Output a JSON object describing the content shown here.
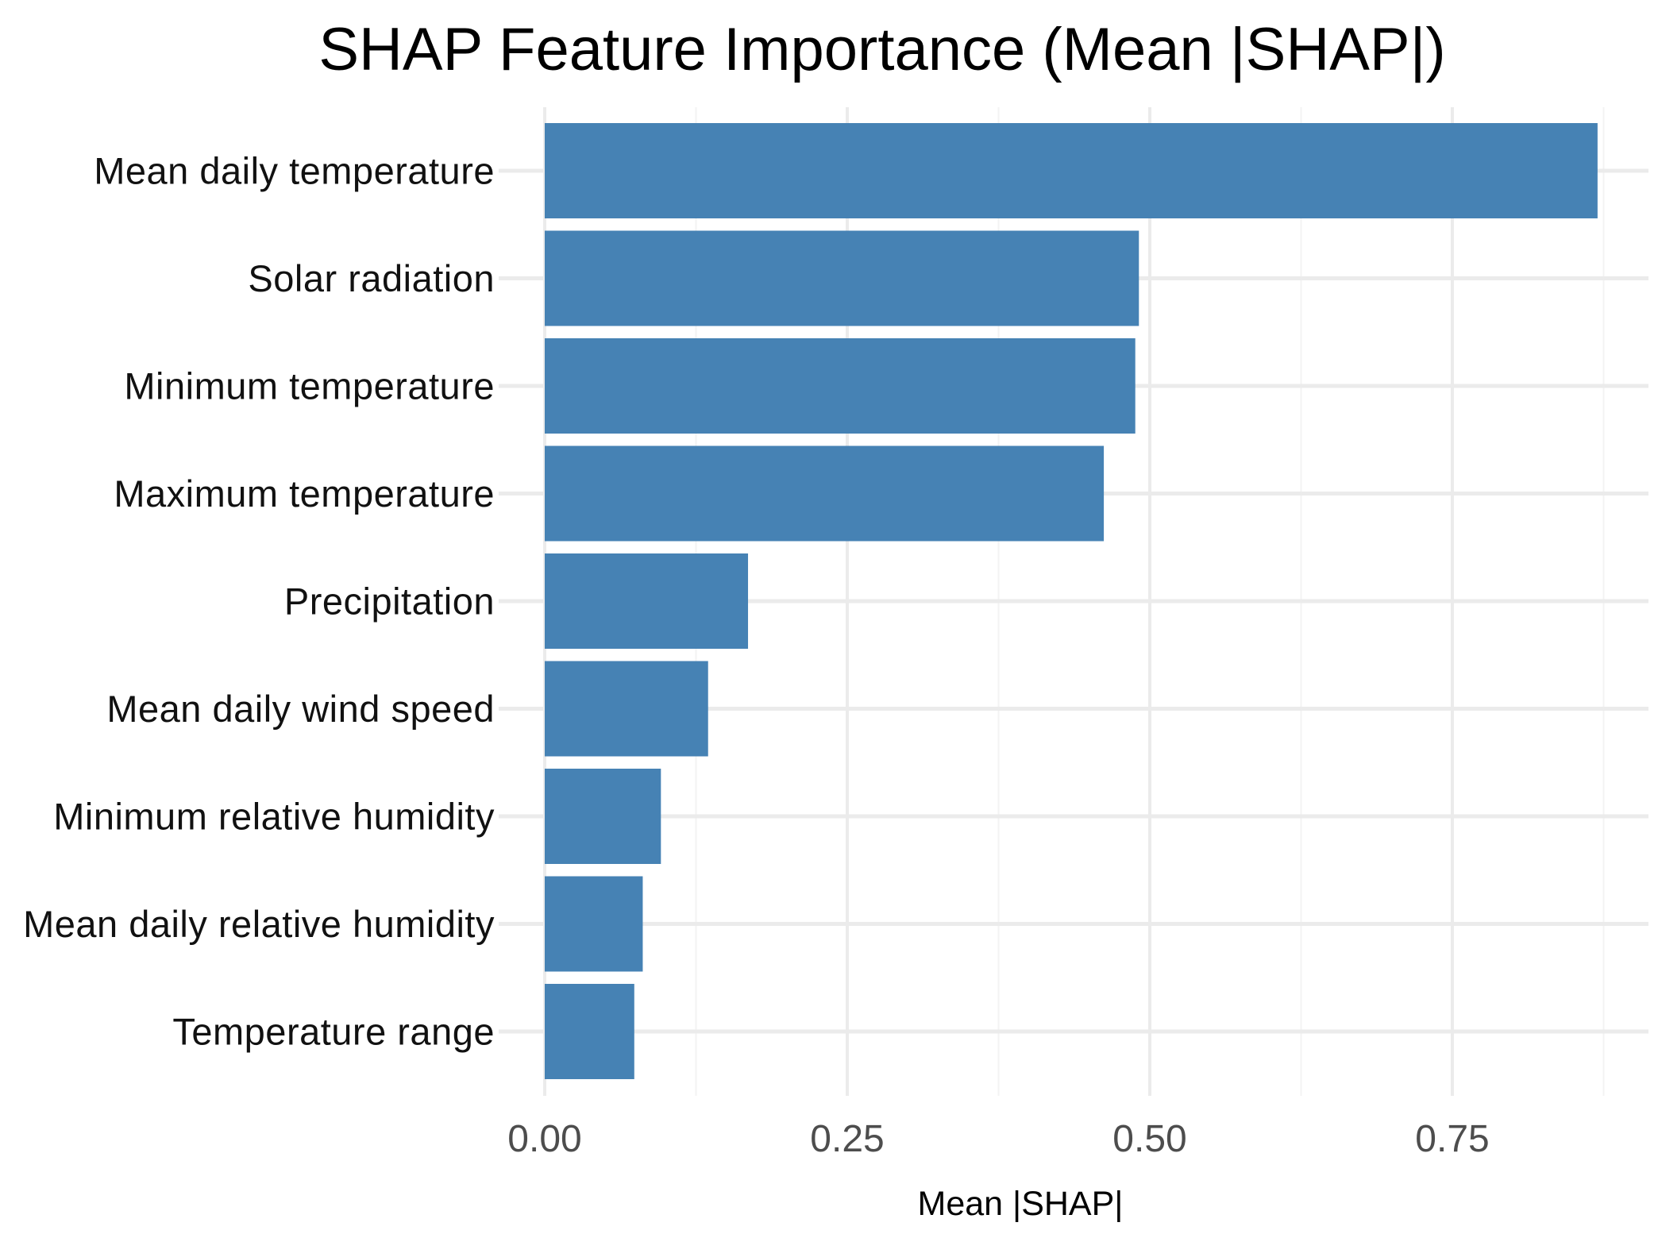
{
  "chart_data": {
    "type": "bar",
    "orientation": "horizontal",
    "title": "SHAP Feature Importance (Mean |SHAP|)",
    "xlabel": "Mean |SHAP|",
    "ylabel": "",
    "categories": [
      "Mean daily temperature",
      "Solar radiation",
      "Minimum temperature",
      "Maximum temperature",
      "Precipitation",
      "Mean daily wind speed",
      "Minimum relative humidity",
      "Mean daily relative humidity",
      "Temperature range"
    ],
    "values": [
      0.87,
      0.491,
      0.488,
      0.462,
      0.168,
      0.135,
      0.096,
      0.081,
      0.074
    ],
    "xlim": [
      0,
      0.914
    ],
    "xticks": [
      "0.00",
      "0.25",
      "0.50",
      "0.75"
    ],
    "xtick_values": [
      0,
      0.25,
      0.5,
      0.75
    ],
    "grid": true,
    "legend": "none",
    "colors": {
      "bar": "#4682b4",
      "grid_major": "#ebebeb",
      "grid_minor": "#f3f3f3",
      "background": "#ffffff"
    }
  }
}
